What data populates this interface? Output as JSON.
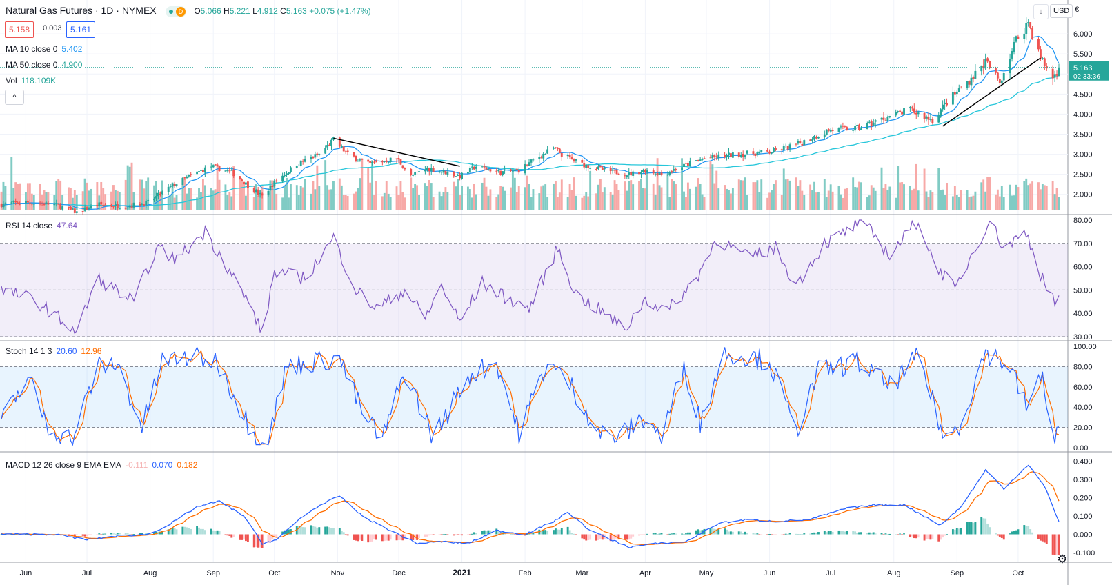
{
  "header": {
    "title": "Natural Gas Futures · 1D · NYMEX",
    "badge_letter": "D",
    "o_label": "O",
    "o_value": "5.066",
    "h_label": "H",
    "h_value": "5.221",
    "l_label": "L",
    "l_value": "4.912",
    "c_label": "C",
    "c_value": "5.163",
    "change": "+0.075 (+1.47%)"
  },
  "trade": {
    "sell_price": "5.158",
    "spread": "0.003",
    "buy_price": "5.161"
  },
  "indicators": {
    "ma10_label": "MA 10 close 0",
    "ma10_value": "5.402",
    "ma50_label": "MA 50 close 0",
    "ma50_value": "4.900",
    "vol_label": "Vol",
    "vol_value": "118.109K",
    "collapse_icon": "^"
  },
  "top_right": {
    "currency": "USD",
    "scroll_down_icon": "↓",
    "fullscreen_icon": "▢",
    "currency_cut_label": "€"
  },
  "price_axis": {
    "ticks": [
      "6.000",
      "5.500",
      "5.000",
      "4.500",
      "4.000",
      "3.500",
      "3.000",
      "2.500",
      "2.000"
    ],
    "last_price": "5.163",
    "countdown": "02:33:36"
  },
  "rsi": {
    "label": "RSI 14 close",
    "value": "47.64",
    "ticks": [
      "80.00",
      "70.00",
      "60.00",
      "50.00",
      "40.00",
      "30.00"
    ]
  },
  "stoch": {
    "label": "Stoch 14 1 3",
    "k_value": "20.60",
    "d_value": "12.96",
    "ticks": [
      "100.00",
      "80.00",
      "60.00",
      "40.00",
      "20.00",
      "0.00"
    ]
  },
  "macd": {
    "label": "MACD 12 26 close 9 EMA EMA",
    "hist_value": "-0.111",
    "macd_value": "0.070",
    "signal_value": "0.182",
    "ticks": [
      "0.400",
      "0.300",
      "0.200",
      "0.100",
      "0.000",
      "-0.100"
    ]
  },
  "time_axis": {
    "labels": [
      "Jun",
      "Jul",
      "Aug",
      "Sep",
      "Oct",
      "Nov",
      "Dec",
      "2021",
      "Feb",
      "Mar",
      "Apr",
      "May",
      "Jun",
      "Jul",
      "Aug",
      "Sep",
      "Oct"
    ],
    "settings_icon": "gear-icon"
  },
  "colors": {
    "up": "#26a69a",
    "down": "#ef5350",
    "ma10": "#2196f3",
    "ma50": "#26c6da",
    "rsi": "#7e57c2",
    "stoch_k": "#2962ff",
    "stoch_d": "#ff6d00",
    "macd": "#2962ff",
    "signal": "#ff6d00"
  },
  "chart_data": [
    {
      "type": "candlestick",
      "title": "Natural Gas Futures · 1D · NYMEX",
      "x_range": [
        "2020-05-20",
        "2021-10-21"
      ],
      "ylim": [
        1.6,
        6.5
      ],
      "close_anchors": [
        [
          "2020-05-20",
          1.75
        ],
        [
          "2020-06-01",
          1.8
        ],
        [
          "2020-06-15",
          1.75
        ],
        [
          "2020-06-26",
          1.55
        ],
        [
          "2020-07-06",
          1.75
        ],
        [
          "2020-07-20",
          1.7
        ],
        [
          "2020-07-31",
          1.8
        ],
        [
          "2020-08-10",
          2.15
        ],
        [
          "2020-08-20",
          2.45
        ],
        [
          "2020-08-31",
          2.7
        ],
        [
          "2020-09-10",
          2.55
        ],
        [
          "2020-09-21",
          2.1
        ],
        [
          "2020-09-25",
          1.95
        ],
        [
          "2020-10-01",
          2.3
        ],
        [
          "2020-10-12",
          2.75
        ],
        [
          "2020-10-23",
          3.0
        ],
        [
          "2020-10-30",
          3.35
        ],
        [
          "2020-11-06",
          3.0
        ],
        [
          "2020-11-16",
          2.75
        ],
        [
          "2020-11-30",
          2.9
        ],
        [
          "2020-12-07",
          2.45
        ],
        [
          "2020-12-15",
          2.65
        ],
        [
          "2020-12-24",
          2.55
        ],
        [
          "2020-12-31",
          2.45
        ],
        [
          "2021-01-08",
          2.7
        ],
        [
          "2021-01-20",
          2.55
        ],
        [
          "2021-01-29",
          2.6
        ],
        [
          "2021-02-05",
          2.85
        ],
        [
          "2021-02-15",
          3.15
        ],
        [
          "2021-02-19",
          3.0
        ],
        [
          "2021-03-01",
          2.75
        ],
        [
          "2021-03-12",
          2.6
        ],
        [
          "2021-03-24",
          2.5
        ],
        [
          "2021-04-01",
          2.6
        ],
        [
          "2021-04-09",
          2.5
        ],
        [
          "2021-04-22",
          2.75
        ],
        [
          "2021-04-30",
          2.9
        ],
        [
          "2021-05-17",
          3.0
        ],
        [
          "2021-06-01",
          3.05
        ],
        [
          "2021-06-15",
          3.25
        ],
        [
          "2021-06-30",
          3.6
        ],
        [
          "2021-07-15",
          3.65
        ],
        [
          "2021-07-30",
          3.95
        ],
        [
          "2021-08-09",
          4.1
        ],
        [
          "2021-08-20",
          3.85
        ],
        [
          "2021-08-27",
          4.3
        ],
        [
          "2021-09-08",
          4.9
        ],
        [
          "2021-09-15",
          5.3
        ],
        [
          "2021-09-22",
          4.8
        ],
        [
          "2021-09-30",
          5.85
        ],
        [
          "2021-10-06",
          6.3
        ],
        [
          "2021-10-12",
          5.4
        ],
        [
          "2021-10-18",
          4.9
        ],
        [
          "2021-10-21",
          5.163
        ]
      ],
      "series": [
        {
          "name": "MA 10 close 0",
          "last_value": 5.402
        },
        {
          "name": "MA 50 close 0",
          "last_value": 4.9
        }
      ],
      "trend_lines": [
        {
          "from": [
            "2020-10-30",
            3.4
          ],
          "to": [
            "2020-12-31",
            2.7
          ]
        },
        {
          "from": [
            "2021-08-25",
            3.7
          ],
          "to": [
            "2021-10-12",
            5.4
          ]
        }
      ],
      "last_price": 5.163
    },
    {
      "type": "line",
      "title": "RSI 14 close",
      "ylim": [
        30,
        80
      ],
      "bands": [
        30,
        50,
        70
      ],
      "anchors": [
        [
          "2020-05-20",
          50
        ],
        [
          "2020-06-05",
          46
        ],
        [
          "2020-06-26",
          32
        ],
        [
          "2020-07-06",
          55
        ],
        [
          "2020-07-24",
          45
        ],
        [
          "2020-08-04",
          68
        ],
        [
          "2020-08-14",
          63
        ],
        [
          "2020-08-28",
          75
        ],
        [
          "2020-09-08",
          60
        ],
        [
          "2020-09-21",
          40
        ],
        [
          "2020-09-25",
          31
        ],
        [
          "2020-10-01",
          58
        ],
        [
          "2020-10-16",
          55
        ],
        [
          "2020-10-30",
          72
        ],
        [
          "2020-11-10",
          50
        ],
        [
          "2020-11-20",
          42
        ],
        [
          "2020-12-04",
          50
        ],
        [
          "2020-12-14",
          38
        ],
        [
          "2020-12-22",
          52
        ],
        [
          "2020-12-31",
          36
        ],
        [
          "2021-01-11",
          53
        ],
        [
          "2021-01-22",
          47
        ],
        [
          "2021-02-03",
          42
        ],
        [
          "2021-02-17",
          68
        ],
        [
          "2021-02-26",
          48
        ],
        [
          "2021-03-12",
          40
        ],
        [
          "2021-03-22",
          33
        ],
        [
          "2021-04-01",
          46
        ],
        [
          "2021-04-12",
          41
        ],
        [
          "2021-04-26",
          55
        ],
        [
          "2021-05-06",
          72
        ],
        [
          "2021-05-21",
          64
        ],
        [
          "2021-06-04",
          68
        ],
        [
          "2021-06-14",
          52
        ],
        [
          "2021-06-28",
          70
        ],
        [
          "2021-07-09",
          75
        ],
        [
          "2021-07-16",
          80
        ],
        [
          "2021-07-30",
          65
        ],
        [
          "2021-08-13",
          80
        ],
        [
          "2021-08-20",
          63
        ],
        [
          "2021-08-31",
          50
        ],
        [
          "2021-09-08",
          65
        ],
        [
          "2021-09-17",
          80
        ],
        [
          "2021-09-24",
          68
        ],
        [
          "2021-10-05",
          75
        ],
        [
          "2021-10-12",
          57
        ],
        [
          "2021-10-19",
          44
        ],
        [
          "2021-10-21",
          47.64
        ]
      ]
    },
    {
      "type": "line",
      "title": "Stoch 14 1 3",
      "ylim": [
        0,
        100
      ],
      "bands": [
        20,
        80
      ],
      "series": [
        {
          "name": "%K",
          "last_value": 20.6
        },
        {
          "name": "%D",
          "last_value": 12.96
        }
      ],
      "anchors": [
        [
          "2020-05-20",
          25
        ],
        [
          "2020-06-02",
          70
        ],
        [
          "2020-06-12",
          20
        ],
        [
          "2020-06-24",
          8
        ],
        [
          "2020-07-06",
          80
        ],
        [
          "2020-07-16",
          82
        ],
        [
          "2020-07-28",
          20
        ],
        [
          "2020-08-07",
          85
        ],
        [
          "2020-08-20",
          90
        ],
        [
          "2020-09-03",
          85
        ],
        [
          "2020-09-14",
          40
        ],
        [
          "2020-09-22",
          8
        ],
        [
          "2020-09-28",
          10
        ],
        [
          "2020-10-07",
          80
        ],
        [
          "2020-10-21",
          85
        ],
        [
          "2020-11-02",
          88
        ],
        [
          "2020-11-13",
          35
        ],
        [
          "2020-11-23",
          8
        ],
        [
          "2020-12-04",
          75
        ],
        [
          "2020-12-18",
          10
        ],
        [
          "2021-01-04",
          70
        ],
        [
          "2021-01-18",
          85
        ],
        [
          "2021-01-29",
          15
        ],
        [
          "2021-02-12",
          85
        ],
        [
          "2021-02-24",
          60
        ],
        [
          "2021-03-09",
          15
        ],
        [
          "2021-03-19",
          10
        ],
        [
          "2021-04-01",
          30
        ],
        [
          "2021-04-09",
          10
        ],
        [
          "2021-04-20",
          80
        ],
        [
          "2021-04-28",
          25
        ],
        [
          "2021-05-10",
          95
        ],
        [
          "2021-06-01",
          85
        ],
        [
          "2021-06-14",
          15
        ],
        [
          "2021-06-25",
          75
        ],
        [
          "2021-07-14",
          85
        ],
        [
          "2021-07-30",
          60
        ],
        [
          "2021-08-13",
          90
        ],
        [
          "2021-08-26",
          8
        ],
        [
          "2021-09-03",
          25
        ],
        [
          "2021-09-15",
          95
        ],
        [
          "2021-09-27",
          80
        ],
        [
          "2021-10-05",
          40
        ],
        [
          "2021-10-13",
          70
        ],
        [
          "2021-10-19",
          5
        ],
        [
          "2021-10-21",
          20.6
        ]
      ]
    },
    {
      "type": "line",
      "title": "MACD 12 26 close 9 EMA EMA",
      "ylim": [
        -0.13,
        0.42
      ],
      "series": [
        {
          "name": "MACD",
          "last_value": 0.07
        },
        {
          "name": "Signal",
          "last_value": 0.182
        },
        {
          "name": "Histogram",
          "last_value": -0.111
        }
      ],
      "anchors": [
        [
          "2020-05-20",
          0.0
        ],
        [
          "2020-06-15",
          0.0
        ],
        [
          "2020-07-01",
          -0.03
        ],
        [
          "2020-07-15",
          -0.01
        ],
        [
          "2020-07-31",
          0.0
        ],
        [
          "2020-08-10",
          0.05
        ],
        [
          "2020-08-24",
          0.15
        ],
        [
          "2020-09-04",
          0.18
        ],
        [
          "2020-09-16",
          0.1
        ],
        [
          "2020-09-25",
          -0.05
        ],
        [
          "2020-10-02",
          -0.03
        ],
        [
          "2020-10-14",
          0.09
        ],
        [
          "2020-10-22",
          0.15
        ],
        [
          "2020-11-02",
          0.21
        ],
        [
          "2020-11-13",
          0.1
        ],
        [
          "2020-11-27",
          0.02
        ],
        [
          "2020-12-10",
          -0.05
        ],
        [
          "2020-12-22",
          -0.04
        ],
        [
          "2021-01-04",
          -0.05
        ],
        [
          "2021-01-18",
          0.02
        ],
        [
          "2021-02-01",
          0.0
        ],
        [
          "2021-02-15",
          0.07
        ],
        [
          "2021-02-22",
          0.12
        ],
        [
          "2021-03-05",
          0.02
        ],
        [
          "2021-03-24",
          -0.07
        ],
        [
          "2021-04-07",
          -0.05
        ],
        [
          "2021-04-21",
          -0.04
        ],
        [
          "2021-05-07",
          0.06
        ],
        [
          "2021-05-21",
          0.08
        ],
        [
          "2021-06-04",
          0.07
        ],
        [
          "2021-06-21",
          0.08
        ],
        [
          "2021-07-08",
          0.14
        ],
        [
          "2021-07-22",
          0.16
        ],
        [
          "2021-08-06",
          0.16
        ],
        [
          "2021-08-24",
          0.05
        ],
        [
          "2021-09-03",
          0.15
        ],
        [
          "2021-09-15",
          0.35
        ],
        [
          "2021-09-24",
          0.25
        ],
        [
          "2021-10-06",
          0.38
        ],
        [
          "2021-10-14",
          0.26
        ],
        [
          "2021-10-21",
          0.07
        ]
      ]
    }
  ]
}
